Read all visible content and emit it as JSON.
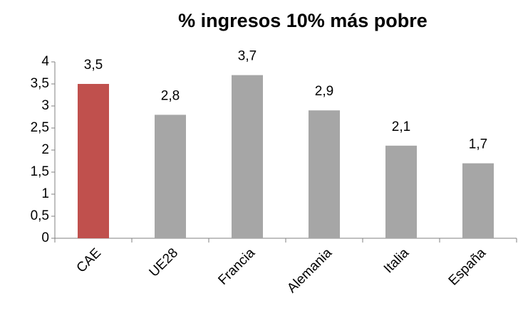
{
  "chart_data": {
    "type": "bar",
    "title": "% ingresos 10% más pobre",
    "categories": [
      "CAE",
      "UE28",
      "Francia",
      "Alemania",
      "Italia",
      "España"
    ],
    "values": [
      3.5,
      2.8,
      3.7,
      2.9,
      2.1,
      1.7
    ],
    "value_labels": [
      "3,5",
      "2,8",
      "3,7",
      "2,9",
      "2,1",
      "1,7"
    ],
    "colors": [
      "#c0504d",
      "#a6a6a6",
      "#a6a6a6",
      "#a6a6a6",
      "#a6a6a6",
      "#a6a6a6"
    ],
    "ylim": [
      0,
      4
    ],
    "yticks": [
      0,
      {
        "value": 0.5,
        "label": "0,5"
      },
      1,
      {
        "value": 1.5,
        "label": "1,5"
      },
      2,
      {
        "value": 2.5,
        "label": "2,5"
      },
      3,
      {
        "value": 3.5,
        "label": "3,5"
      },
      4
    ],
    "grid": false
  }
}
